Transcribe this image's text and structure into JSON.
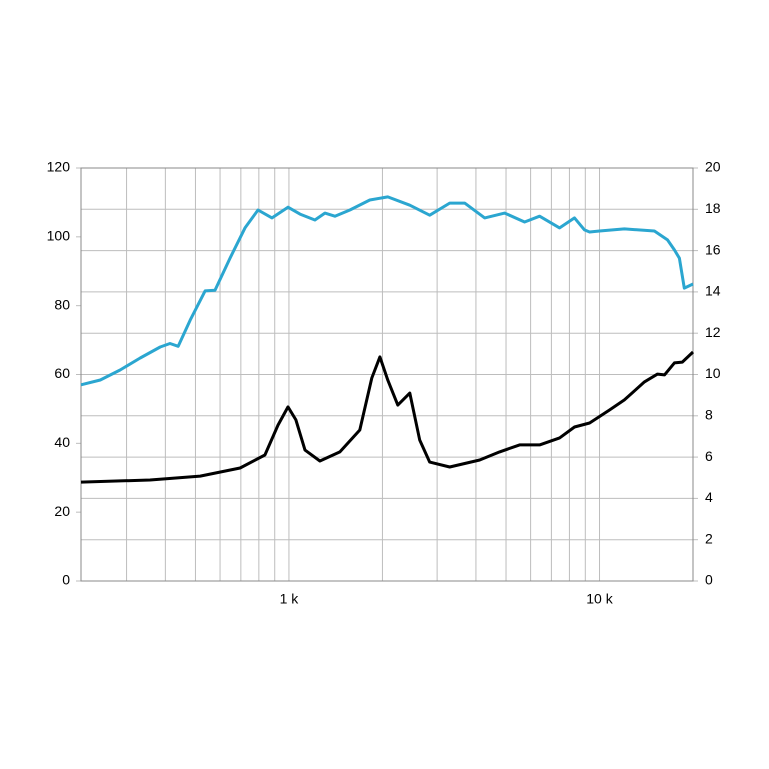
{
  "chart_data": {
    "type": "line",
    "xlog": true,
    "xlim": [
      214,
      20000
    ],
    "xticks": [
      {
        "value": 1000,
        "label": "1 k"
      },
      {
        "value": 10000,
        "label": "10 k"
      }
    ],
    "xminor": [
      300,
      400,
      500,
      600,
      700,
      800,
      900,
      2000,
      3000,
      4000,
      5000,
      6000,
      7000,
      8000,
      9000
    ],
    "ylim": [
      0,
      120
    ],
    "yticks": [
      0,
      20,
      40,
      60,
      80,
      100,
      120
    ],
    "y2lim": [
      0,
      20
    ],
    "y2ticks": [
      0,
      2,
      4,
      6,
      8,
      10,
      12,
      14,
      16,
      18,
      20
    ],
    "grid": true,
    "series": [
      {
        "color": "#2ba6d0",
        "x": [
          214,
          247,
          286,
          332,
          385,
          414,
          440,
          481,
          537,
          578,
          646,
          722,
          795,
          882,
          993,
          1085,
          1212,
          1305,
          1406,
          1571,
          1821,
          2081,
          2449,
          2840,
          3294,
          3681,
          4270,
          4950,
          5740,
          6413,
          7437,
          8310,
          8950,
          9290,
          10000,
          12030,
          15020,
          16550,
          17420,
          18080,
          18750,
          20000
        ],
        "values": [
          57,
          58.4,
          61.3,
          64.8,
          68,
          69,
          68.2,
          75.8,
          84.3,
          84.5,
          93.8,
          102.6,
          107.8,
          105.5,
          108.6,
          106.6,
          104.9,
          106.9,
          106,
          107.8,
          110.7,
          111.6,
          109.2,
          106.3,
          109.8,
          109.8,
          105.5,
          106.9,
          104.3,
          106,
          102.6,
          105.5,
          102,
          101.4,
          101.7,
          102.3,
          101.7,
          99.1,
          96.2,
          93.8,
          85.1,
          86.3
        ]
      },
      {
        "color": "#000000",
        "axis": "y2",
        "x": [
          214,
          357,
          518,
          696,
          837,
          922,
          993,
          1053,
          1126,
          1258,
          1459,
          1691,
          1849,
          1963,
          2081,
          2241,
          2449,
          2637,
          2840,
          3294,
          4113,
          4767,
          5530,
          6413,
          7437,
          8310,
          9290,
          10770,
          12030,
          13950,
          15370,
          16190,
          17420,
          18480,
          20000
        ],
        "values": [
          4.79,
          4.89,
          5.08,
          5.47,
          6.1,
          7.55,
          8.43,
          7.8,
          6.34,
          5.81,
          6.25,
          7.31,
          9.83,
          10.85,
          9.73,
          8.52,
          9.1,
          6.83,
          5.76,
          5.52,
          5.86,
          6.25,
          6.59,
          6.59,
          6.93,
          7.46,
          7.65,
          8.28,
          8.77,
          9.64,
          10.02,
          9.98,
          10.56,
          10.6,
          11.09
        ]
      }
    ]
  }
}
